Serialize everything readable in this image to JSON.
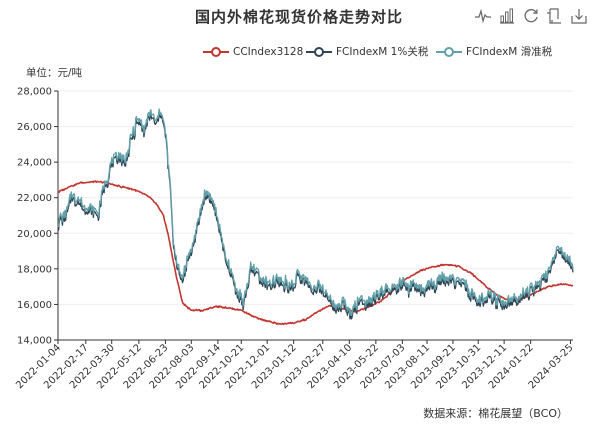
{
  "title": "国内外棉花现货价格走势对比",
  "toolbox": {
    "icons": [
      "line-chart-icon",
      "bar-chart-icon",
      "restore-icon",
      "data-view-icon",
      "save-image-icon"
    ]
  },
  "unit_label": "单位：元/吨",
  "source_label": "数据来源：棉花展望（BCO）",
  "colors": {
    "cc": "#c23531",
    "fc1": "#2f4554",
    "fc2": "#61a0a8",
    "axis": "#333333",
    "grid": "#eeeeee"
  },
  "chart_data": {
    "type": "line",
    "title": "国内外棉花现货价格走势对比",
    "ylabel": "单位：元/吨",
    "xlabel": "",
    "ylim": [
      14000,
      28000
    ],
    "yticks": [
      14000,
      16000,
      18000,
      20000,
      22000,
      24000,
      26000,
      28000
    ],
    "ytick_labels": [
      "14,000",
      "16,000",
      "18,000",
      "20,000",
      "22,000",
      "24,000",
      "26,000",
      "28,000"
    ],
    "x_range": [
      "2022-01-04",
      "2024-03-29"
    ],
    "xtick_labels": [
      "2022-01-04",
      "2022-02-17",
      "2022-03-30",
      "2022-05-12",
      "2022-06-23",
      "2022-08-03",
      "2022-09-14",
      "2022-10-21",
      "2022-12-01",
      "2023-01-12",
      "2023-02-27",
      "2023-04-10",
      "2023-05-22",
      "2023-07-03",
      "2023-08-11",
      "2023-09-21",
      "2023-10-31",
      "2023-12-11",
      "2024-01-22",
      "2024-03-25"
    ],
    "grid": "horizontal",
    "legend_position": "top-right",
    "series": [
      {
        "name": "CCIndex3128",
        "points": [
          [
            "2022-01-04",
            22300
          ],
          [
            "2022-01-20",
            22600
          ],
          [
            "2022-02-10",
            22850
          ],
          [
            "2022-03-01",
            22900
          ],
          [
            "2022-03-20",
            22850
          ],
          [
            "2022-04-10",
            22650
          ],
          [
            "2022-04-30",
            22500
          ],
          [
            "2022-05-15",
            22300
          ],
          [
            "2022-05-30",
            22000
          ],
          [
            "2022-06-10",
            21600
          ],
          [
            "2022-06-20",
            21000
          ],
          [
            "2022-06-28",
            19800
          ],
          [
            "2022-07-05",
            18500
          ],
          [
            "2022-07-12",
            17300
          ],
          [
            "2022-07-20",
            16100
          ],
          [
            "2022-08-01",
            15700
          ],
          [
            "2022-08-20",
            15650
          ],
          [
            "2022-09-10",
            15900
          ],
          [
            "2022-09-30",
            15800
          ],
          [
            "2022-10-20",
            15700
          ],
          [
            "2022-11-10",
            15300
          ],
          [
            "2022-12-01",
            15050
          ],
          [
            "2022-12-20",
            14900
          ],
          [
            "2023-01-10",
            14950
          ],
          [
            "2023-01-31",
            15150
          ],
          [
            "2023-02-20",
            15600
          ],
          [
            "2023-03-10",
            15950
          ],
          [
            "2023-03-31",
            15750
          ],
          [
            "2023-04-20",
            15600
          ],
          [
            "2023-05-10",
            15850
          ],
          [
            "2023-05-31",
            16200
          ],
          [
            "2023-06-20",
            16850
          ],
          [
            "2023-07-10",
            17450
          ],
          [
            "2023-07-31",
            17900
          ],
          [
            "2023-08-20",
            18100
          ],
          [
            "2023-09-10",
            18250
          ],
          [
            "2023-09-30",
            18150
          ],
          [
            "2023-10-20",
            17750
          ],
          [
            "2023-11-10",
            17100
          ],
          [
            "2023-11-30",
            16500
          ],
          [
            "2023-12-20",
            16200
          ],
          [
            "2024-01-10",
            16350
          ],
          [
            "2024-01-31",
            16700
          ],
          [
            "2024-02-20",
            17000
          ],
          [
            "2024-03-10",
            17150
          ],
          [
            "2024-03-29",
            17050
          ]
        ]
      },
      {
        "name": "FCIndexM 1%关税",
        "points": [
          [
            "2022-01-04",
            20400
          ],
          [
            "2022-01-15",
            21000
          ],
          [
            "2022-01-25",
            21900
          ],
          [
            "2022-02-05",
            21800
          ],
          [
            "2022-02-15",
            21400
          ],
          [
            "2022-02-25",
            21100
          ],
          [
            "2022-03-08",
            20900
          ],
          [
            "2022-03-18",
            22400
          ],
          [
            "2022-03-30",
            23700
          ],
          [
            "2022-04-10",
            24300
          ],
          [
            "2022-04-20",
            23900
          ],
          [
            "2022-04-30",
            25200
          ],
          [
            "2022-05-10",
            26200
          ],
          [
            "2022-05-20",
            25700
          ],
          [
            "2022-05-30",
            26600
          ],
          [
            "2022-06-08",
            25900
          ],
          [
            "2022-06-16",
            26800
          ],
          [
            "2022-06-24",
            25300
          ],
          [
            "2022-06-30",
            22800
          ],
          [
            "2022-07-06",
            19200
          ],
          [
            "2022-07-12",
            17900
          ],
          [
            "2022-07-20",
            17300
          ],
          [
            "2022-07-28",
            18400
          ],
          [
            "2022-08-05",
            19100
          ],
          [
            "2022-08-15",
            20800
          ],
          [
            "2022-08-25",
            22300
          ],
          [
            "2022-09-05",
            21800
          ],
          [
            "2022-09-15",
            20400
          ],
          [
            "2022-09-25",
            18700
          ],
          [
            "2022-10-05",
            17500
          ],
          [
            "2022-10-15",
            16500
          ],
          [
            "2022-10-25",
            16000
          ],
          [
            "2022-11-05",
            17900
          ],
          [
            "2022-11-15",
            17800
          ],
          [
            "2022-11-25",
            17100
          ],
          [
            "2022-12-05",
            16800
          ],
          [
            "2022-12-15",
            17200
          ],
          [
            "2022-12-28",
            17100
          ],
          [
            "2023-01-10",
            16900
          ],
          [
            "2023-01-20",
            17500
          ],
          [
            "2023-02-01",
            17100
          ],
          [
            "2023-02-15",
            16800
          ],
          [
            "2023-02-28",
            16700
          ],
          [
            "2023-03-10",
            16200
          ],
          [
            "2023-03-20",
            15700
          ],
          [
            "2023-03-31",
            15900
          ],
          [
            "2023-04-10",
            15500
          ],
          [
            "2023-04-20",
            15800
          ],
          [
            "2023-04-30",
            16200
          ],
          [
            "2023-05-10",
            16000
          ],
          [
            "2023-05-22",
            16200
          ],
          [
            "2023-06-01",
            16500
          ],
          [
            "2023-06-12",
            16700
          ],
          [
            "2023-06-22",
            16800
          ],
          [
            "2023-07-03",
            17000
          ],
          [
            "2023-07-14",
            16800
          ],
          [
            "2023-07-25",
            16900
          ],
          [
            "2023-08-05",
            16600
          ],
          [
            "2023-08-16",
            16900
          ],
          [
            "2023-08-28",
            17100
          ],
          [
            "2023-09-08",
            17400
          ],
          [
            "2023-09-20",
            17300
          ],
          [
            "2023-10-01",
            17050
          ],
          [
            "2023-10-12",
            16800
          ],
          [
            "2023-10-24",
            16300
          ],
          [
            "2023-11-04",
            16050
          ],
          [
            "2023-11-15",
            16350
          ],
          [
            "2023-11-26",
            16200
          ],
          [
            "2023-12-08",
            15900
          ],
          [
            "2023-12-20",
            16100
          ],
          [
            "2024-01-01",
            16250
          ],
          [
            "2024-01-12",
            16450
          ],
          [
            "2024-01-24",
            16700
          ],
          [
            "2024-02-05",
            17050
          ],
          [
            "2024-02-16",
            17350
          ],
          [
            "2024-02-27",
            18600
          ],
          [
            "2024-03-06",
            19300
          ],
          [
            "2024-03-13",
            18700
          ],
          [
            "2024-03-20",
            18500
          ],
          [
            "2024-03-29",
            17800
          ]
        ]
      },
      {
        "name": "FCIndexM 滑准税",
        "points": [
          [
            "2022-01-04",
            20600
          ],
          [
            "2022-01-15",
            21200
          ],
          [
            "2022-01-25",
            22100
          ],
          [
            "2022-02-05",
            22000
          ],
          [
            "2022-02-15",
            21600
          ],
          [
            "2022-02-25",
            21300
          ],
          [
            "2022-03-08",
            21100
          ],
          [
            "2022-03-18",
            22600
          ],
          [
            "2022-03-30",
            23900
          ],
          [
            "2022-04-10",
            24500
          ],
          [
            "2022-04-20",
            24100
          ],
          [
            "2022-04-30",
            25400
          ],
          [
            "2022-05-10",
            26400
          ],
          [
            "2022-05-20",
            25900
          ],
          [
            "2022-05-30",
            26800
          ],
          [
            "2022-06-08",
            26100
          ],
          [
            "2022-06-16",
            26950
          ],
          [
            "2022-06-24",
            25500
          ],
          [
            "2022-06-30",
            23000
          ],
          [
            "2022-07-06",
            19400
          ],
          [
            "2022-07-12",
            18100
          ],
          [
            "2022-07-20",
            17500
          ],
          [
            "2022-07-28",
            18600
          ],
          [
            "2022-08-05",
            19300
          ],
          [
            "2022-08-15",
            21000
          ],
          [
            "2022-08-25",
            22500
          ],
          [
            "2022-09-05",
            22000
          ],
          [
            "2022-09-15",
            20600
          ],
          [
            "2022-09-25",
            18900
          ],
          [
            "2022-10-05",
            17700
          ],
          [
            "2022-10-15",
            16700
          ],
          [
            "2022-10-25",
            16200
          ],
          [
            "2022-11-05",
            18100
          ],
          [
            "2022-11-15",
            18000
          ],
          [
            "2022-11-25",
            17300
          ],
          [
            "2022-12-05",
            17000
          ],
          [
            "2022-12-15",
            17400
          ],
          [
            "2022-12-28",
            17300
          ],
          [
            "2023-01-10",
            17100
          ],
          [
            "2023-01-20",
            17700
          ],
          [
            "2023-02-01",
            17300
          ],
          [
            "2023-02-15",
            17000
          ],
          [
            "2023-02-28",
            16900
          ],
          [
            "2023-03-10",
            16400
          ],
          [
            "2023-03-20",
            15900
          ],
          [
            "2023-03-31",
            16100
          ],
          [
            "2023-04-10",
            15700
          ],
          [
            "2023-04-20",
            16000
          ],
          [
            "2023-04-30",
            16400
          ],
          [
            "2023-05-10",
            16200
          ],
          [
            "2023-05-22",
            16400
          ],
          [
            "2023-06-01",
            16700
          ],
          [
            "2023-06-12",
            16900
          ],
          [
            "2023-06-22",
            17000
          ],
          [
            "2023-07-03",
            17200
          ],
          [
            "2023-07-14",
            17000
          ],
          [
            "2023-07-25",
            17100
          ],
          [
            "2023-08-05",
            16800
          ],
          [
            "2023-08-16",
            17100
          ],
          [
            "2023-08-28",
            17300
          ],
          [
            "2023-09-08",
            17600
          ],
          [
            "2023-09-20",
            17500
          ],
          [
            "2023-10-01",
            17250
          ],
          [
            "2023-10-12",
            17000
          ],
          [
            "2023-10-24",
            16500
          ],
          [
            "2023-11-04",
            16250
          ],
          [
            "2023-11-15",
            16550
          ],
          [
            "2023-11-26",
            16400
          ],
          [
            "2023-12-08",
            16100
          ],
          [
            "2023-12-20",
            16300
          ],
          [
            "2024-01-01",
            16450
          ],
          [
            "2024-01-12",
            16650
          ],
          [
            "2024-01-24",
            16900
          ],
          [
            "2024-02-05",
            17250
          ],
          [
            "2024-02-16",
            17550
          ],
          [
            "2024-02-27",
            18800
          ],
          [
            "2024-03-06",
            19500
          ],
          [
            "2024-03-13",
            18900
          ],
          [
            "2024-03-20",
            18700
          ],
          [
            "2024-03-29",
            18000
          ]
        ]
      }
    ]
  }
}
